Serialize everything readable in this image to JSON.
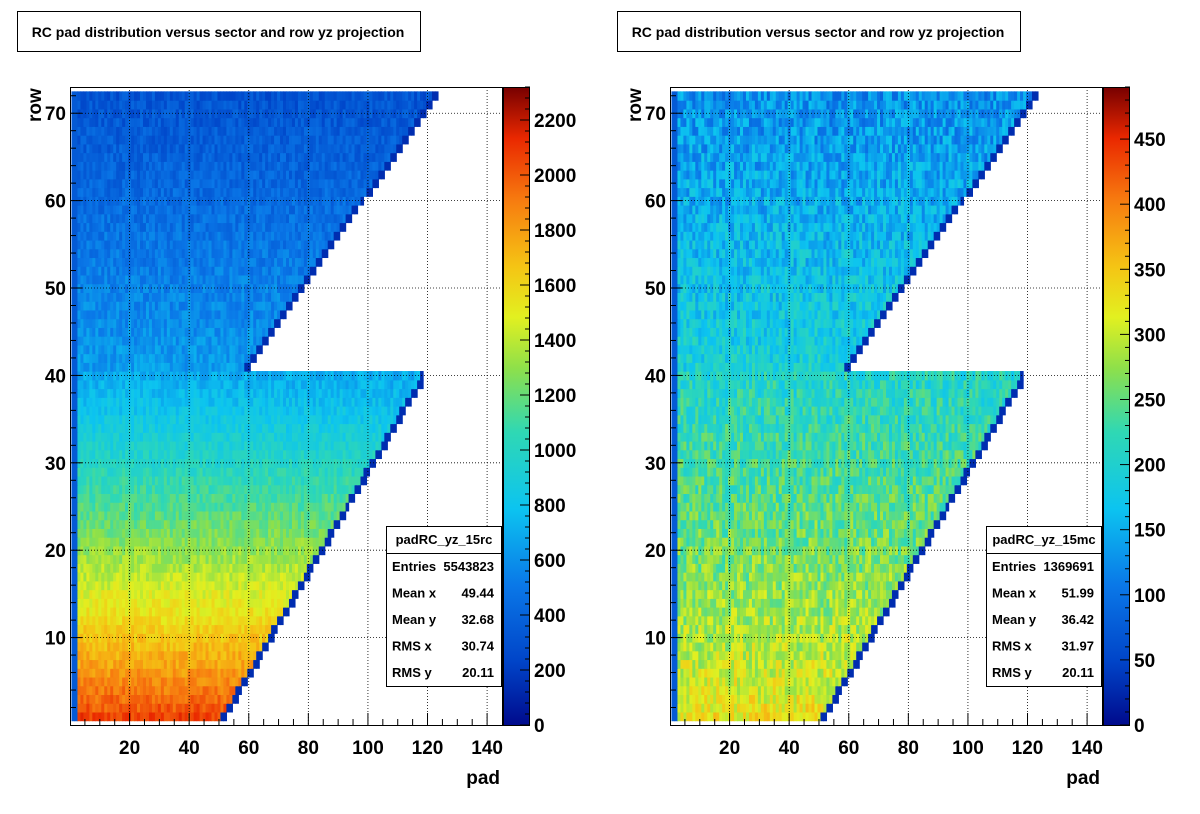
{
  "chart_data": [
    {
      "type": "heatmap",
      "title": "RC pad distribution versus sector and row yz projection",
      "xlabel": "pad",
      "ylabel": "row",
      "xlim": [
        0,
        145
      ],
      "ylim": [
        0,
        73
      ],
      "zlim": [
        0,
        2320
      ],
      "x_ticks": [
        "20",
        "40",
        "60",
        "80",
        "100",
        "120",
        "140"
      ],
      "y_ticks": [
        "10",
        "20",
        "30",
        "40",
        "50",
        "60",
        "70"
      ],
      "z_ticks": [
        "0",
        "200",
        "400",
        "600",
        "800",
        "1000",
        "1200",
        "1400",
        "1600",
        "1800",
        "2000",
        "2200"
      ],
      "grid": true,
      "colormap": "rainbow (blue-cyan-green-yellow-red)",
      "stats": {
        "name": "padRC_yz_15rc",
        "rows": [
          {
            "label": "Entries",
            "value": "5543823"
          },
          {
            "label": "Mean x",
            "value": "49.44"
          },
          {
            "label": "Mean y",
            "value": "32.68"
          },
          {
            "label": "RMS x",
            "value": "30.74"
          },
          {
            "label": "RMS y",
            "value": "20.11"
          }
        ]
      }
    },
    {
      "type": "heatmap",
      "title": "RC pad distribution versus sector and row yz projection",
      "xlabel": "pad",
      "ylabel": "row",
      "xlim": [
        0,
        145
      ],
      "ylim": [
        0,
        73
      ],
      "zlim": [
        0,
        490
      ],
      "x_ticks": [
        "20",
        "40",
        "60",
        "80",
        "100",
        "120",
        "140"
      ],
      "y_ticks": [
        "10",
        "20",
        "30",
        "40",
        "50",
        "60",
        "70"
      ],
      "z_ticks": [
        "0",
        "50",
        "100",
        "150",
        "200",
        "250",
        "300",
        "350",
        "400",
        "450"
      ],
      "grid": true,
      "colormap": "rainbow (blue-cyan-green-yellow-red)",
      "stats": {
        "name": "padRC_yz_15mc",
        "rows": [
          {
            "label": "Entries",
            "value": "1369691"
          },
          {
            "label": "Mean x",
            "value": "51.99"
          },
          {
            "label": "Mean y",
            "value": "36.42"
          },
          {
            "label": "RMS x",
            "value": "31.97"
          },
          {
            "label": "RMS y",
            "value": "20.11"
          }
        ]
      }
    }
  ]
}
